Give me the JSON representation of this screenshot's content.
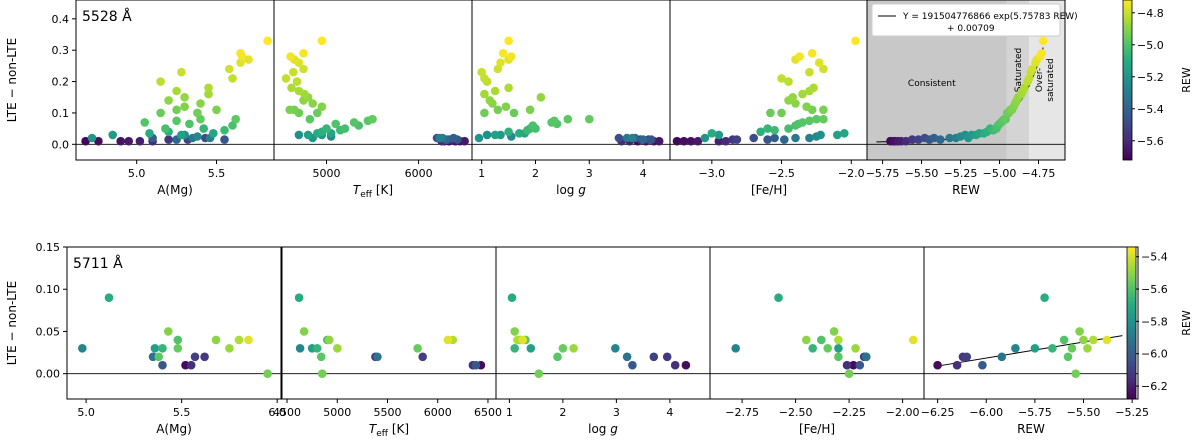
{
  "chart_data": [
    {
      "type": "scatter",
      "title": "5528 Å",
      "ylabel": "LTE − non-LTE",
      "ylim": [
        -0.05,
        0.46
      ],
      "yticks": [
        0.0,
        0.1,
        0.2,
        0.3,
        0.4
      ],
      "ytick_labels": [
        "0.0",
        "0.1",
        "0.2",
        "0.3",
        "0.4"
      ],
      "zero_line": true,
      "colorbar": {
        "label": "REW",
        "range": [
          -5.72,
          -4.72
        ],
        "ticks": [
          -5.6,
          -5.4,
          -5.2,
          -5.0,
          -4.8
        ],
        "tick_labels": [
          "−5.6",
          "−5.4",
          "−5.2",
          "−5.0",
          "−4.8"
        ]
      },
      "panels": [
        {
          "xlabel": "A(Mg)",
          "xlim": [
            4.62,
            5.86
          ],
          "xticks": [
            5.0,
            5.5
          ],
          "xtick_labels": [
            "5.0",
            "5.5"
          ]
        },
        {
          "xlabel": "T_eff [K]",
          "xlim": [
            4430,
            6580
          ],
          "xticks": [
            5000,
            6000
          ],
          "xtick_labels": [
            "5000",
            "6000"
          ]
        },
        {
          "xlabel": "log g",
          "xlim": [
            0.82,
            4.5
          ],
          "xticks": [
            1,
            2,
            3,
            4
          ],
          "xtick_labels": [
            "1",
            "2",
            "3",
            "4"
          ]
        },
        {
          "xlabel": "[Fe/H]",
          "xlim": [
            -3.3,
            -1.88
          ],
          "xticks": [
            -3.0,
            -2.5,
            -2.0
          ],
          "xtick_labels": [
            "−3.0",
            "−2.5",
            "−2.0"
          ]
        },
        {
          "xlabel": "REW",
          "xlim": [
            -5.85,
            -4.58
          ],
          "xticks": [
            -5.75,
            -5.5,
            -5.25,
            -5.0,
            -4.75
          ],
          "xtick_labels": [
            "−5.75",
            "−5.50",
            "−5.25",
            "−5.00",
            "−4.75"
          ]
        }
      ],
      "regions": [
        {
          "label": "Consistent",
          "x_range": [
            -5.85,
            -4.955
          ],
          "color": "#c8c8c8"
        },
        {
          "label": "Saturated",
          "x_range": [
            -4.955,
            -4.81
          ],
          "color": "#d4d4d4"
        },
        {
          "label": "Over-\nsaturated",
          "x_range": [
            -4.81,
            -4.58
          ],
          "color": "#e6e6e6"
        }
      ],
      "fit": {
        "legend_line1": "Y = 191504776866 exp(5.75783 REW)",
        "legend_line2": "+ 0.00709",
        "A": 191504776866,
        "B": 5.75783,
        "C": 0.00709
      },
      "points": [
        {
          "rew": -5.7,
          "amg": 4.68,
          "teff": 6330,
          "logg": 3.9,
          "feh": -3.25,
          "y": 0.01
        },
        {
          "rew": -5.68,
          "amg": 4.76,
          "teff": 6400,
          "logg": 4.05,
          "feh": -3.2,
          "y": 0.01
        },
        {
          "rew": -5.67,
          "amg": 4.9,
          "teff": 6450,
          "logg": 4.2,
          "feh": -3.15,
          "y": 0.01
        },
        {
          "rew": -5.65,
          "amg": 4.95,
          "teff": 6500,
          "logg": 4.3,
          "feh": -3.1,
          "y": 0.01
        },
        {
          "rew": -5.63,
          "amg": 5.02,
          "teff": 6280,
          "logg": 3.75,
          "feh": -2.95,
          "y": 0.01
        },
        {
          "rew": -5.6,
          "amg": 5.1,
          "teff": 6250,
          "logg": 3.6,
          "feh": -2.9,
          "y": 0.01
        },
        {
          "rew": -5.56,
          "amg": 5.2,
          "teff": 6350,
          "logg": 3.95,
          "feh": -2.85,
          "y": 0.015
        },
        {
          "rew": -5.52,
          "amg": 5.32,
          "teff": 6320,
          "logg": 4.1,
          "feh": -2.82,
          "y": 0.015
        },
        {
          "rew": -5.48,
          "amg": 5.43,
          "teff": 6200,
          "logg": 3.55,
          "feh": -2.7,
          "y": 0.02
        },
        {
          "rew": -5.45,
          "amg": 5.55,
          "teff": 6420,
          "logg": 4.15,
          "feh": -2.6,
          "y": 0.015
        },
        {
          "rew": -5.42,
          "amg": 5.1,
          "teff": 6380,
          "logg": 3.85,
          "feh": -2.55,
          "y": 0.02
        },
        {
          "rew": -5.38,
          "amg": 5.25,
          "teff": 6300,
          "logg": 4.0,
          "feh": -2.48,
          "y": 0.015
        },
        {
          "rew": -5.32,
          "amg": 5.35,
          "teff": 6260,
          "logg": 3.7,
          "feh": -2.4,
          "y": 0.02
        },
        {
          "rew": -5.28,
          "amg": 5.46,
          "teff": 6230,
          "logg": 3.8,
          "feh": -2.3,
          "y": 0.02
        },
        {
          "rew": -5.25,
          "amg": 5.38,
          "teff": 5050,
          "logg": 1.55,
          "feh": -2.25,
          "y": 0.025
        },
        {
          "rew": -5.22,
          "amg": 5.3,
          "teff": 4700,
          "logg": 1.1,
          "feh": -2.22,
          "y": 0.03
        },
        {
          "rew": -5.2,
          "amg": 4.72,
          "teff": 4850,
          "logg": 0.95,
          "feh": -3.05,
          "y": 0.02
        },
        {
          "rew": -5.18,
          "amg": 4.85,
          "teff": 4950,
          "logg": 1.35,
          "feh": -2.95,
          "y": 0.03
        },
        {
          "rew": -5.15,
          "amg": 5.28,
          "teff": 4800,
          "logg": 1.25,
          "feh": -2.1,
          "y": 0.03
        },
        {
          "rew": -5.13,
          "amg": 5.48,
          "teff": 5050,
          "logg": 1.8,
          "feh": -2.05,
          "y": 0.035
        },
        {
          "rew": -5.1,
          "amg": 5.08,
          "teff": 4900,
          "logg": 1.7,
          "feh": -3.0,
          "y": 0.035
        },
        {
          "rew": -5.08,
          "amg": 5.2,
          "teff": 4950,
          "logg": 1.5,
          "feh": -2.65,
          "y": 0.04
        },
        {
          "rew": -5.06,
          "amg": 5.42,
          "teff": 5000,
          "logg": 1.9,
          "feh": -2.6,
          "y": 0.05
        },
        {
          "rew": -5.04,
          "amg": 5.55,
          "teff": 5150,
          "logg": 1.85,
          "feh": -2.55,
          "y": 0.045
        },
        {
          "rew": -5.02,
          "amg": 5.18,
          "teff": 5200,
          "logg": 2.0,
          "feh": -2.45,
          "y": 0.05
        },
        {
          "rew": -5.01,
          "amg": 5.6,
          "teff": 5350,
          "logg": 1.95,
          "feh": -2.4,
          "y": 0.06
        },
        {
          "rew": -5.0,
          "amg": 5.33,
          "teff": 5100,
          "logg": 2.4,
          "feh": -2.38,
          "y": 0.065
        },
        {
          "rew": -4.99,
          "amg": 5.05,
          "teff": 5300,
          "logg": 2.3,
          "feh": -2.35,
          "y": 0.07
        },
        {
          "rew": -4.98,
          "amg": 5.25,
          "teff": 5450,
          "logg": 2.35,
          "feh": -2.3,
          "y": 0.075
        },
        {
          "rew": -4.97,
          "amg": 5.62,
          "teff": 4820,
          "logg": 2.6,
          "feh": -2.25,
          "y": 0.08
        },
        {
          "rew": -4.96,
          "amg": 5.4,
          "teff": 5500,
          "logg": 3.0,
          "feh": -2.2,
          "y": 0.08
        },
        {
          "rew": -4.95,
          "amg": 5.15,
          "teff": 4900,
          "logg": 1.6,
          "feh": -2.58,
          "y": 0.1
        },
        {
          "rew": -4.94,
          "amg": 5.38,
          "teff": 4700,
          "logg": 1.05,
          "feh": -2.5,
          "y": 0.1
        },
        {
          "rew": -4.93,
          "amg": 5.25,
          "teff": 4650,
          "logg": 1.3,
          "feh": -2.28,
          "y": 0.11
        },
        {
          "rew": -4.92,
          "amg": 5.5,
          "teff": 4600,
          "logg": 1.9,
          "feh": -2.2,
          "y": 0.11
        },
        {
          "rew": -4.91,
          "amg": 5.3,
          "teff": 4950,
          "logg": 1.45,
          "feh": -2.32,
          "y": 0.12
        },
        {
          "rew": -4.9,
          "amg": 5.4,
          "teff": 4850,
          "logg": 1.2,
          "feh": -2.4,
          "y": 0.13
        },
        {
          "rew": -4.89,
          "amg": 5.2,
          "teff": 4750,
          "logg": 1.15,
          "feh": -2.45,
          "y": 0.14
        },
        {
          "rew": -4.88,
          "amg": 5.3,
          "teff": 4800,
          "logg": 2.1,
          "feh": -2.42,
          "y": 0.15
        },
        {
          "rew": -4.86,
          "amg": 5.45,
          "teff": 4760,
          "logg": 1.05,
          "feh": -2.35,
          "y": 0.16
        },
        {
          "rew": -4.85,
          "amg": 5.25,
          "teff": 4700,
          "logg": 1.25,
          "feh": -2.3,
          "y": 0.17
        },
        {
          "rew": -4.84,
          "amg": 5.45,
          "teff": 4620,
          "logg": 1.5,
          "feh": -2.27,
          "y": 0.18
        },
        {
          "rew": -4.82,
          "amg": 5.15,
          "teff": 4680,
          "logg": 1.1,
          "feh": -2.45,
          "y": 0.2
        },
        {
          "rew": -4.81,
          "amg": 5.6,
          "teff": 4560,
          "logg": 1.05,
          "feh": -2.5,
          "y": 0.21
        },
        {
          "rew": -4.8,
          "amg": 5.28,
          "teff": 4640,
          "logg": 1.0,
          "feh": -2.3,
          "y": 0.23
        },
        {
          "rew": -4.79,
          "amg": 5.58,
          "teff": 4750,
          "logg": 1.3,
          "feh": -2.2,
          "y": 0.24
        },
        {
          "rew": -4.77,
          "amg": 5.65,
          "teff": 4700,
          "logg": 1.35,
          "feh": -2.23,
          "y": 0.26
        },
        {
          "rew": -4.76,
          "amg": 5.7,
          "teff": 4650,
          "logg": 1.5,
          "feh": -2.4,
          "y": 0.27
        },
        {
          "rew": -4.74,
          "amg": 5.66,
          "teff": 4610,
          "logg": 1.55,
          "feh": -2.37,
          "y": 0.28
        },
        {
          "rew": -4.73,
          "amg": 5.65,
          "teff": 4750,
          "logg": 1.4,
          "feh": -2.28,
          "y": 0.29
        },
        {
          "rew": -4.72,
          "amg": 5.82,
          "teff": 4950,
          "logg": 1.5,
          "feh": -1.97,
          "y": 0.33
        }
      ]
    },
    {
      "type": "scatter",
      "title": "5711 Å",
      "ylabel": "LTE − non-LTE",
      "ylim": [
        -0.03,
        0.15
      ],
      "yticks": [
        0.0,
        0.05,
        0.1,
        0.15
      ],
      "ytick_labels": [
        "0.00",
        "0.05",
        "0.10",
        "0.15"
      ],
      "zero_line": true,
      "colorbar": {
        "label": "REW",
        "range": [
          -6.28,
          -5.34
        ],
        "ticks": [
          -6.2,
          -6.0,
          -5.8,
          -5.6,
          -5.4
        ],
        "tick_labels": [
          "−6.2",
          "−6.0",
          "−5.8",
          "−5.6",
          "−5.4"
        ]
      },
      "panels": [
        {
          "xlabel": "A(Mg)",
          "xlim": [
            4.9,
            6.02
          ],
          "xticks": [
            5.0,
            5.5,
            6.0
          ],
          "xtick_labels": [
            "5.0",
            "5.5",
            "6.0"
          ]
        },
        {
          "xlabel": "T_eff [K]",
          "xlim": [
            4450,
            6580
          ],
          "xticks": [
            4500,
            5000,
            5500,
            6000,
            6500
          ],
          "xtick_labels": [
            "4500",
            "5000",
            "5500",
            "6000",
            "6500"
          ]
        },
        {
          "xlabel": "log g",
          "xlim": [
            0.75,
            4.75
          ],
          "xticks": [
            1,
            2,
            3,
            4
          ],
          "xtick_labels": [
            "1",
            "2",
            "3",
            "4"
          ]
        },
        {
          "xlabel": "[Fe/H]",
          "xlim": [
            -2.9,
            -1.9
          ],
          "xticks": [
            -2.75,
            -2.5,
            -2.25,
            -2.0
          ],
          "xtick_labels": [
            "−2.75",
            "−2.50",
            "−2.25",
            "−2.00"
          ]
        },
        {
          "xlabel": "REW",
          "xlim": [
            -6.32,
            -5.22
          ],
          "xticks": [
            -6.25,
            -6.0,
            -5.75,
            -5.5,
            -5.25
          ],
          "xtick_labels": [
            "−6.25",
            "−6.00",
            "−5.75",
            "−5.50",
            "−5.25"
          ]
        }
      ],
      "fit": {
        "x_range": [
          -6.25,
          -5.3
        ],
        "y_range": [
          0.009,
          0.045
        ]
      },
      "points": [
        {
          "rew": -6.25,
          "amg": 5.52,
          "teff": 6430,
          "logg": 4.3,
          "feh": -2.23,
          "y": 0.01
        },
        {
          "rew": -6.15,
          "amg": 5.55,
          "teff": 6350,
          "logg": 4.1,
          "feh": -2.26,
          "y": 0.01
        },
        {
          "rew": -6.12,
          "amg": 5.62,
          "teff": 5380,
          "logg": 3.95,
          "feh": -2.18,
          "y": 0.02
        },
        {
          "rew": -6.1,
          "amg": 5.57,
          "teff": 5850,
          "logg": 3.7,
          "feh": -2.17,
          "y": 0.02
        },
        {
          "rew": -6.02,
          "amg": 5.4,
          "teff": 6380,
          "logg": 3.3,
          "feh": -2.2,
          "y": 0.01
        },
        {
          "rew": -5.92,
          "amg": 5.35,
          "teff": 5400,
          "logg": 3.2,
          "feh": -2.17,
          "y": 0.02
        },
        {
          "rew": -5.85,
          "amg": 4.98,
          "teff": 4630,
          "logg": 2.98,
          "feh": -2.78,
          "y": 0.03
        },
        {
          "rew": -5.7,
          "amg": 5.12,
          "teff": 4620,
          "logg": 1.05,
          "feh": -2.58,
          "y": 0.09
        },
        {
          "rew": -5.75,
          "amg": 5.36,
          "teff": 4750,
          "logg": 1.4,
          "feh": -2.3,
          "y": 0.03
        },
        {
          "rew": -5.66,
          "amg": 5.4,
          "teff": 4800,
          "logg": 1.1,
          "feh": -2.42,
          "y": 0.03
        },
        {
          "rew": -5.6,
          "amg": 5.48,
          "teff": 4900,
          "logg": 1.3,
          "feh": -2.38,
          "y": 0.04
        },
        {
          "rew": -5.58,
          "amg": 5.38,
          "teff": 4840,
          "logg": 1.9,
          "feh": -2.3,
          "y": 0.02
        },
        {
          "rew": -5.56,
          "amg": 5.48,
          "teff": 5800,
          "logg": 2.0,
          "feh": -2.35,
          "y": 0.03
        },
        {
          "rew": -5.54,
          "amg": 5.95,
          "teff": 4850,
          "logg": 1.55,
          "feh": -2.25,
          "y": 0.0
        },
        {
          "rew": -5.52,
          "amg": 5.43,
          "teff": 4670,
          "logg": 1.1,
          "feh": -2.32,
          "y": 0.05
        },
        {
          "rew": -5.5,
          "amg": 5.68,
          "teff": 4920,
          "logg": 1.2,
          "feh": -2.45,
          "y": 0.04
        },
        {
          "rew": -5.48,
          "amg": 5.75,
          "teff": 5000,
          "logg": 2.2,
          "feh": -2.22,
          "y": 0.03
        },
        {
          "rew": -5.45,
          "amg": 5.8,
          "teff": 6150,
          "logg": 1.15,
          "feh": -2.3,
          "y": 0.04
        },
        {
          "rew": -5.38,
          "amg": 5.85,
          "teff": 6100,
          "logg": 1.25,
          "feh": -1.95,
          "y": 0.04
        }
      ]
    }
  ]
}
